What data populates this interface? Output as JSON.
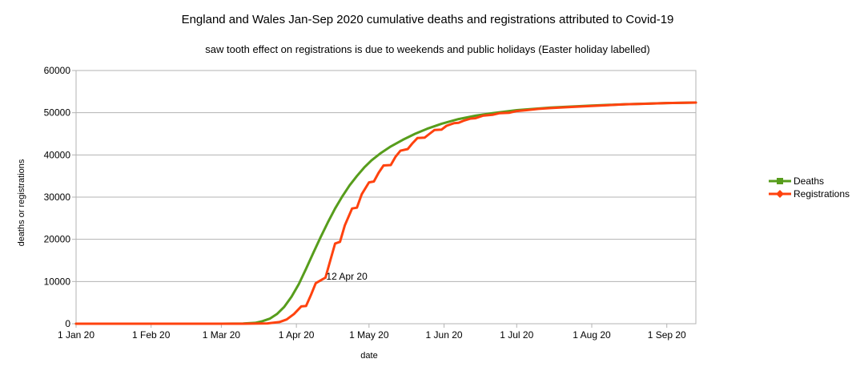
{
  "chart_data": {
    "type": "line",
    "title": "England and Wales Jan-Sep 2020 cumulative deaths and registrations attributed to Covid-19",
    "subtitle": "saw tooth effect on registrations is due to weekends and public holidays (Easter holiday labelled)",
    "xlabel": "date",
    "ylabel": "deaths or registrations",
    "xlim": [
      "2020-01-01",
      "2020-09-13"
    ],
    "ylim": [
      0,
      60000
    ],
    "yticks": [
      0,
      10000,
      20000,
      30000,
      40000,
      50000,
      60000
    ],
    "xticks": [
      {
        "date": "2020-01-01",
        "label": "1 Jan 20"
      },
      {
        "date": "2020-02-01",
        "label": "1 Feb 20"
      },
      {
        "date": "2020-03-01",
        "label": "1 Mar 20"
      },
      {
        "date": "2020-04-01",
        "label": "1 Apr 20"
      },
      {
        "date": "2020-05-01",
        "label": "1 May 20"
      },
      {
        "date": "2020-06-01",
        "label": "1 Jun 20"
      },
      {
        "date": "2020-07-01",
        "label": "1 Jul 20"
      },
      {
        "date": "2020-08-01",
        "label": "1 Aug 20"
      },
      {
        "date": "2020-09-01",
        "label": "1 Sep 20"
      }
    ],
    "grid": "horizontal",
    "legend": "right",
    "series": [
      {
        "name": "Deaths",
        "color": "#579d1c",
        "marker": "square",
        "points": [
          [
            "2020-01-01",
            0
          ],
          [
            "2020-03-01",
            0
          ],
          [
            "2020-03-10",
            50
          ],
          [
            "2020-03-15",
            200
          ],
          [
            "2020-03-18",
            600
          ],
          [
            "2020-03-21",
            1200
          ],
          [
            "2020-03-24",
            2300
          ],
          [
            "2020-03-27",
            4000
          ],
          [
            "2020-03-30",
            6400
          ],
          [
            "2020-04-02",
            9400
          ],
          [
            "2020-04-05",
            13000
          ],
          [
            "2020-04-08",
            16800
          ],
          [
            "2020-04-11",
            20500
          ],
          [
            "2020-04-14",
            24000
          ],
          [
            "2020-04-17",
            27300
          ],
          [
            "2020-04-20",
            30200
          ],
          [
            "2020-04-23",
            32800
          ],
          [
            "2020-04-26",
            35000
          ],
          [
            "2020-04-29",
            37000
          ],
          [
            "2020-05-02",
            38700
          ],
          [
            "2020-05-06",
            40500
          ],
          [
            "2020-05-10",
            42000
          ],
          [
            "2020-05-15",
            43600
          ],
          [
            "2020-05-20",
            45000
          ],
          [
            "2020-05-25",
            46200
          ],
          [
            "2020-05-31",
            47400
          ],
          [
            "2020-06-07",
            48500
          ],
          [
            "2020-06-14",
            49300
          ],
          [
            "2020-06-21",
            49900
          ],
          [
            "2020-07-01",
            50600
          ],
          [
            "2020-07-15",
            51200
          ],
          [
            "2020-08-01",
            51700
          ],
          [
            "2020-08-15",
            52000
          ],
          [
            "2020-09-01",
            52300
          ],
          [
            "2020-09-13",
            52400
          ]
        ]
      },
      {
        "name": "Registrations",
        "color": "#ff420e",
        "marker": "diamond",
        "points": [
          [
            "2020-01-01",
            0
          ],
          [
            "2020-03-10",
            0
          ],
          [
            "2020-03-20",
            80
          ],
          [
            "2020-03-25",
            400
          ],
          [
            "2020-03-28",
            1000
          ],
          [
            "2020-03-31",
            2300
          ],
          [
            "2020-04-03",
            4100
          ],
          [
            "2020-04-05",
            4200
          ],
          [
            "2020-04-07",
            6800
          ],
          [
            "2020-04-09",
            9600
          ],
          [
            "2020-04-12",
            10600
          ],
          [
            "2020-04-13",
            10900
          ],
          [
            "2020-04-15",
            15000
          ],
          [
            "2020-04-17",
            19000
          ],
          [
            "2020-04-19",
            19400
          ],
          [
            "2020-04-21",
            23300
          ],
          [
            "2020-04-24",
            27300
          ],
          [
            "2020-04-26",
            27500
          ],
          [
            "2020-04-28",
            30700
          ],
          [
            "2020-05-01",
            33500
          ],
          [
            "2020-05-03",
            33700
          ],
          [
            "2020-05-05",
            35800
          ],
          [
            "2020-05-07",
            37500
          ],
          [
            "2020-05-10",
            37600
          ],
          [
            "2020-05-12",
            39600
          ],
          [
            "2020-05-14",
            41000
          ],
          [
            "2020-05-17",
            41400
          ],
          [
            "2020-05-19",
            42800
          ],
          [
            "2020-05-21",
            44000
          ],
          [
            "2020-05-24",
            44100
          ],
          [
            "2020-05-26",
            45000
          ],
          [
            "2020-05-28",
            45900
          ],
          [
            "2020-05-31",
            46000
          ],
          [
            "2020-06-02",
            46900
          ],
          [
            "2020-06-05",
            47500
          ],
          [
            "2020-06-07",
            47600
          ],
          [
            "2020-06-09",
            48100
          ],
          [
            "2020-06-12",
            48600
          ],
          [
            "2020-06-14",
            48700
          ],
          [
            "2020-06-17",
            49300
          ],
          [
            "2020-06-21",
            49500
          ],
          [
            "2020-06-24",
            49900
          ],
          [
            "2020-06-28",
            50000
          ],
          [
            "2020-07-01",
            50400
          ],
          [
            "2020-07-05",
            50600
          ],
          [
            "2020-07-10",
            50900
          ],
          [
            "2020-07-15",
            51100
          ],
          [
            "2020-07-22",
            51300
          ],
          [
            "2020-08-01",
            51600
          ],
          [
            "2020-08-08",
            51800
          ],
          [
            "2020-08-15",
            52000
          ],
          [
            "2020-08-22",
            52100
          ],
          [
            "2020-09-01",
            52300
          ],
          [
            "2020-09-13",
            52400
          ]
        ]
      }
    ],
    "annotations": [
      {
        "text": "12 Apr 20",
        "x": "2020-04-12",
        "y": 10600
      }
    ]
  }
}
